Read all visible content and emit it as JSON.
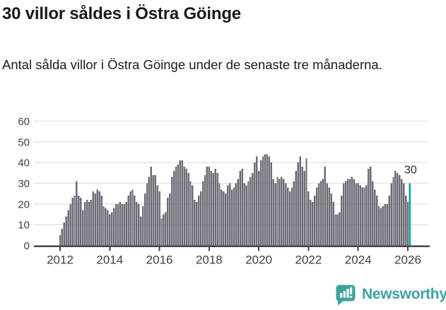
{
  "header": {
    "title": "30 villor såldes i Östra Göinge",
    "subtitle": "Antal sålda villor i Östra Göinge under de senaste tre månaderna."
  },
  "chart_data": {
    "type": "bar",
    "x_start": "2012-01",
    "x_end": "2026-02",
    "frequency": "monthly",
    "values": [
      5,
      8,
      11,
      14,
      17,
      20,
      23,
      24,
      31,
      24,
      23,
      17,
      21,
      22,
      21,
      22,
      26,
      25,
      27,
      26,
      24,
      19,
      18,
      17,
      15,
      16,
      18,
      20,
      20,
      21,
      20,
      20,
      21,
      24,
      26,
      27,
      24,
      21,
      20,
      14,
      19,
      25,
      30,
      33,
      38,
      34,
      34,
      29,
      26,
      13,
      15,
      16,
      23,
      25,
      33,
      36,
      38,
      39,
      41,
      41,
      38,
      37,
      35,
      31,
      29,
      22,
      21,
      24,
      26,
      31,
      34,
      38,
      38,
      36,
      35,
      37,
      35,
      30,
      27,
      26,
      25,
      29,
      30,
      27,
      28,
      30,
      32,
      36,
      37,
      30,
      29,
      31,
      33,
      35,
      40,
      43,
      36,
      41,
      43,
      44,
      44,
      43,
      40,
      32,
      30,
      33,
      32,
      33,
      32,
      30,
      28,
      26,
      28,
      31,
      36,
      40,
      43,
      38,
      36,
      42,
      26,
      22,
      21,
      24,
      28,
      30,
      31,
      32,
      38,
      30,
      28,
      25,
      21,
      15,
      15,
      16,
      24,
      30,
      31,
      32,
      32,
      33,
      32,
      30,
      30,
      29,
      28,
      28,
      29,
      37,
      38,
      31,
      27,
      24,
      19,
      18,
      19,
      20,
      20,
      24,
      30,
      33,
      36,
      35,
      34,
      32,
      30,
      24,
      21,
      30
    ],
    "ylim": [
      0,
      60
    ],
    "y_ticks": [
      0,
      10,
      20,
      30,
      40,
      50,
      60
    ],
    "x_tick_years": [
      "2012",
      "2014",
      "2016",
      "2018",
      "2020",
      "2022",
      "2024",
      "2026"
    ],
    "highlight": {
      "index": 169,
      "label": "30",
      "color": "#00A49C"
    },
    "bar_color": "#6D6D77",
    "grid_color": "#E2E2E2",
    "axis_color": "#474747",
    "tick_label_color": "#3F3F3F",
    "annotation_color": "#2B2B2B",
    "grid": true,
    "legend": "none",
    "title": "",
    "xlabel": "",
    "ylabel": ""
  },
  "footer": {
    "brand": "Newsworthy",
    "brand_color": "#3DA29E"
  }
}
